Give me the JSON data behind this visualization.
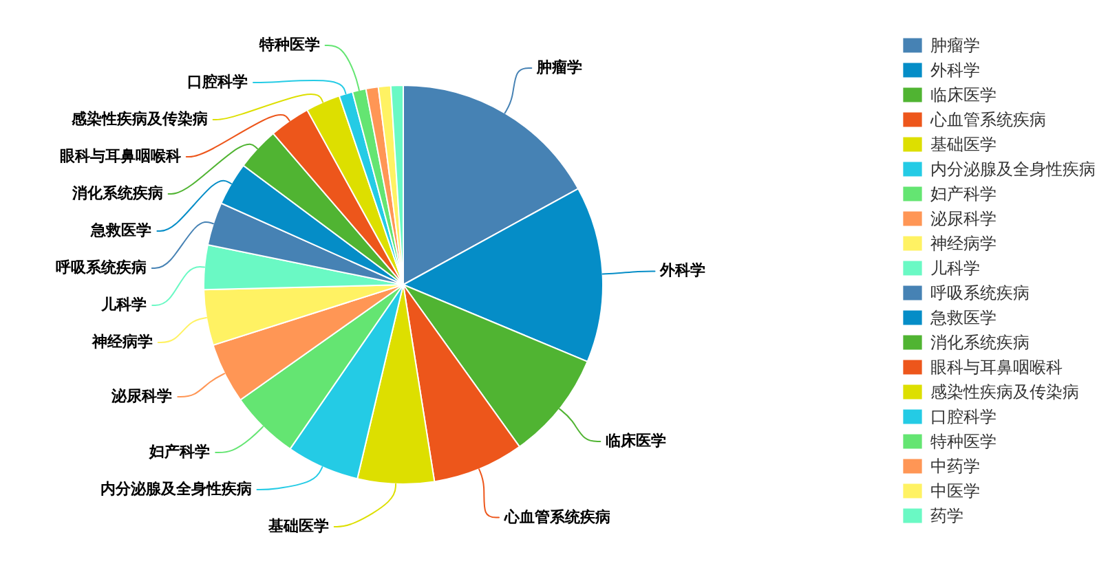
{
  "chart_data": {
    "type": "pie",
    "categories": [
      "肿瘤学",
      "外科学",
      "临床医学",
      "心血管系统疾病",
      "基础医学",
      "内分泌腺及全身性疾病",
      "妇产科学",
      "泌尿科学",
      "神经病学",
      "儿科学",
      "呼吸系统疾病",
      "急救医学",
      "消化系统疾病",
      "眼科与耳鼻咽喉科",
      "感染性疾病及传染病",
      "口腔科学",
      "特种医学",
      "中药学",
      "中医学",
      "药学"
    ],
    "values": [
      17.0,
      14.3,
      8.8,
      7.4,
      6.2,
      5.9,
      5.6,
      4.9,
      4.5,
      3.6,
      3.5,
      3.5,
      3.5,
      3.3,
      2.8,
      1.1,
      1.1,
      1.0,
      1.0,
      1.0
    ],
    "colors": [
      "#4682b4",
      "#058dc7",
      "#50b432",
      "#ed561b",
      "#dddf00",
      "#24cbe5",
      "#64e572",
      "#ff9655",
      "#fff263",
      "#6af9c4",
      "#4682b4",
      "#058dc7",
      "#50b432",
      "#ed561b",
      "#dddf00",
      "#24cbe5",
      "#64e572",
      "#ff9655",
      "#fff263",
      "#6af9c4"
    ],
    "legend": "right"
  }
}
